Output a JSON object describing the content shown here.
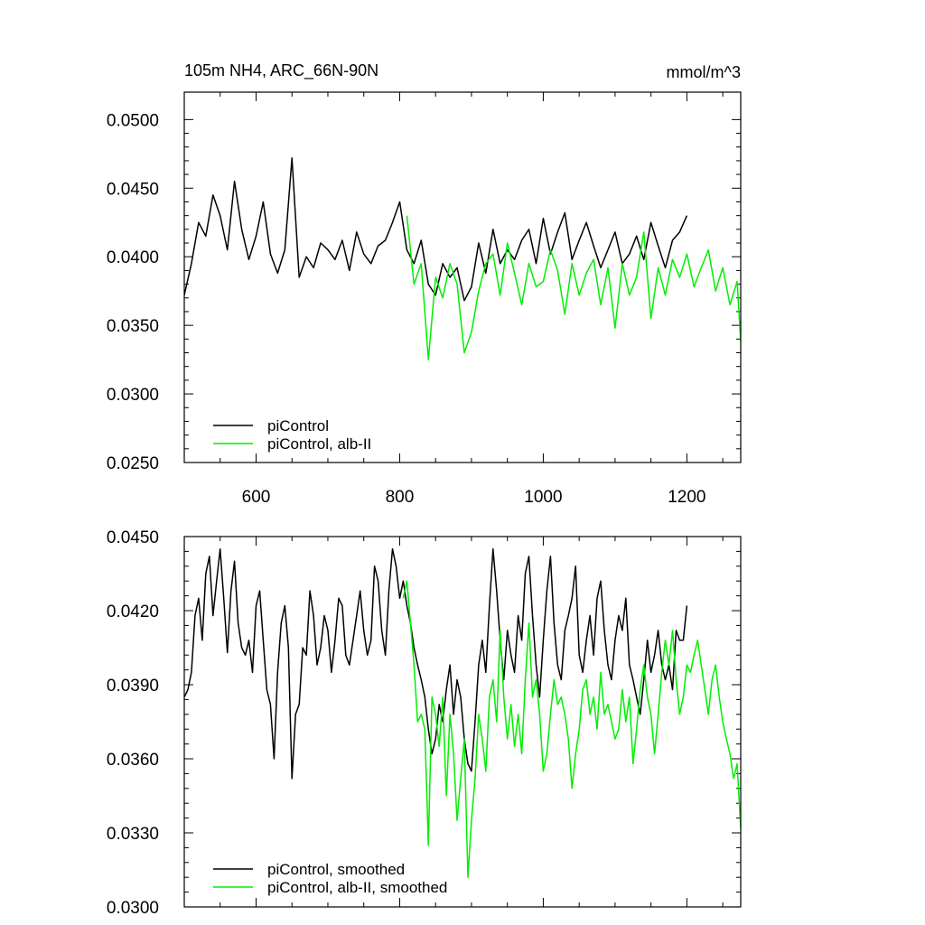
{
  "chart_data": [
    {
      "type": "line",
      "title": "105m NH4, ARC_66N-90N",
      "units": "mmol/m^3",
      "xlabel": "",
      "ylabel": "",
      "xlim": [
        500,
        1275
      ],
      "ylim": [
        0.025,
        0.052
      ],
      "xticks": [
        600,
        800,
        1000,
        1200
      ],
      "xtick_labels": [
        "600",
        "800",
        "1000",
        "1200"
      ],
      "yticks": [
        0.025,
        0.03,
        0.035,
        0.04,
        0.045,
        0.05
      ],
      "ytick_labels": [
        "0.0250",
        "0.0300",
        "0.0350",
        "0.0400",
        "0.0450",
        "0.0500"
      ],
      "grid": false,
      "legend_position": "bottom-left",
      "series": [
        {
          "name": "piControl",
          "color": "#000000",
          "x": [
            500,
            510,
            520,
            530,
            540,
            550,
            560,
            570,
            580,
            590,
            600,
            610,
            620,
            630,
            640,
            650,
            660,
            670,
            680,
            690,
            700,
            710,
            720,
            730,
            740,
            750,
            760,
            770,
            780,
            790,
            800,
            810,
            820,
            830,
            840,
            850,
            860,
            870,
            880,
            890,
            900,
            910,
            920,
            930,
            940,
            950,
            960,
            970,
            980,
            990,
            1000,
            1010,
            1020,
            1030,
            1040,
            1050,
            1060,
            1070,
            1080,
            1090,
            1100,
            1110,
            1120,
            1130,
            1140,
            1150,
            1160,
            1170,
            1180,
            1190,
            1200
          ],
          "y": [
            0.0372,
            0.0395,
            0.0425,
            0.0415,
            0.0445,
            0.043,
            0.0405,
            0.0455,
            0.042,
            0.0398,
            0.0415,
            0.044,
            0.0402,
            0.0388,
            0.0405,
            0.0472,
            0.0385,
            0.04,
            0.0392,
            0.041,
            0.0405,
            0.0398,
            0.0412,
            0.039,
            0.0418,
            0.0402,
            0.0395,
            0.0408,
            0.0412,
            0.0425,
            0.044,
            0.0405,
            0.0395,
            0.0412,
            0.038,
            0.0372,
            0.0395,
            0.0385,
            0.0392,
            0.0368,
            0.0378,
            0.041,
            0.0388,
            0.042,
            0.0395,
            0.0405,
            0.0398,
            0.0412,
            0.042,
            0.0395,
            0.0428,
            0.0402,
            0.0418,
            0.0432,
            0.0398,
            0.0412,
            0.0425,
            0.0408,
            0.0392,
            0.0405,
            0.0418,
            0.0395,
            0.0402,
            0.0415,
            0.0398,
            0.0425,
            0.0408,
            0.0392,
            0.0412,
            0.0418,
            0.043
          ]
        },
        {
          "name": "piControl, alb-II",
          "color": "#00ee00",
          "x": [
            810,
            820,
            830,
            840,
            850,
            860,
            870,
            880,
            890,
            900,
            910,
            920,
            930,
            940,
            950,
            960,
            970,
            980,
            990,
            1000,
            1010,
            1020,
            1030,
            1040,
            1050,
            1060,
            1070,
            1080,
            1090,
            1100,
            1110,
            1120,
            1130,
            1140,
            1150,
            1160,
            1170,
            1180,
            1190,
            1200,
            1210,
            1220,
            1230,
            1240,
            1250,
            1260,
            1270,
            1275
          ],
          "y": [
            0.043,
            0.038,
            0.0395,
            0.0325,
            0.0385,
            0.037,
            0.0395,
            0.038,
            0.033,
            0.0345,
            0.0375,
            0.0395,
            0.0402,
            0.0372,
            0.041,
            0.0388,
            0.0365,
            0.0395,
            0.0378,
            0.0382,
            0.0405,
            0.039,
            0.0358,
            0.0395,
            0.0372,
            0.0388,
            0.0398,
            0.0365,
            0.0392,
            0.0348,
            0.0395,
            0.0372,
            0.0385,
            0.0418,
            0.0355,
            0.0392,
            0.0372,
            0.0398,
            0.0385,
            0.0402,
            0.0378,
            0.0392,
            0.0405,
            0.0375,
            0.0392,
            0.0365,
            0.0382,
            0.0338
          ]
        }
      ]
    },
    {
      "type": "line",
      "title": "",
      "xlabel": "",
      "ylabel": "",
      "xlim": [
        500,
        1275
      ],
      "ylim": [
        0.03,
        0.045
      ],
      "xticks": [
        600,
        800,
        1000,
        1200
      ],
      "yticks": [
        0.03,
        0.033,
        0.036,
        0.039,
        0.042,
        0.045
      ],
      "ytick_labels": [
        "0.0300",
        "0.0330",
        "0.0360",
        "0.0390",
        "0.0420",
        "0.0450"
      ],
      "grid": false,
      "legend_position": "bottom-left",
      "series": [
        {
          "name": "piControl, smoothed",
          "color": "#000000",
          "x": [
            500,
            505,
            510,
            515,
            520,
            525,
            530,
            535,
            540,
            545,
            550,
            555,
            560,
            565,
            570,
            575,
            580,
            585,
            590,
            595,
            600,
            605,
            610,
            615,
            620,
            625,
            630,
            635,
            640,
            645,
            650,
            655,
            660,
            665,
            670,
            675,
            680,
            685,
            690,
            695,
            700,
            705,
            710,
            715,
            720,
            725,
            730,
            735,
            740,
            745,
            750,
            755,
            760,
            765,
            770,
            775,
            780,
            785,
            790,
            795,
            800,
            805,
            810,
            815,
            820,
            825,
            830,
            835,
            840,
            845,
            850,
            855,
            860,
            865,
            870,
            875,
            880,
            885,
            890,
            895,
            900,
            905,
            910,
            915,
            920,
            925,
            930,
            935,
            940,
            945,
            950,
            955,
            960,
            965,
            970,
            975,
            980,
            985,
            990,
            995,
            1000,
            1005,
            1010,
            1015,
            1020,
            1025,
            1030,
            1035,
            1040,
            1045,
            1050,
            1055,
            1060,
            1065,
            1070,
            1075,
            1080,
            1085,
            1090,
            1095,
            1100,
            1105,
            1110,
            1115,
            1120,
            1125,
            1130,
            1135,
            1140,
            1145,
            1150,
            1155,
            1160,
            1165,
            1170,
            1175,
            1180,
            1185,
            1190,
            1195,
            1200
          ],
          "y": [
            0.0385,
            0.0388,
            0.0395,
            0.0418,
            0.0425,
            0.0408,
            0.0435,
            0.0442,
            0.0418,
            0.0432,
            0.0445,
            0.0425,
            0.0403,
            0.0428,
            0.044,
            0.0415,
            0.0405,
            0.0402,
            0.0408,
            0.0395,
            0.0422,
            0.0428,
            0.0408,
            0.0388,
            0.0382,
            0.036,
            0.0395,
            0.0415,
            0.0422,
            0.0405,
            0.0352,
            0.0378,
            0.0382,
            0.0405,
            0.0402,
            0.0428,
            0.0418,
            0.0398,
            0.0405,
            0.0418,
            0.0412,
            0.0395,
            0.0408,
            0.0425,
            0.0422,
            0.0402,
            0.0398,
            0.0408,
            0.0418,
            0.0428,
            0.0412,
            0.0402,
            0.0408,
            0.0438,
            0.0432,
            0.0412,
            0.0402,
            0.0428,
            0.0445,
            0.0438,
            0.0425,
            0.0432,
            0.0422,
            0.0415,
            0.0405,
            0.0398,
            0.0392,
            0.0385,
            0.0372,
            0.0362,
            0.0368,
            0.0382,
            0.0375,
            0.0388,
            0.0398,
            0.0378,
            0.0392,
            0.0385,
            0.0368,
            0.0358,
            0.0355,
            0.0375,
            0.0398,
            0.0408,
            0.0395,
            0.0422,
            0.0445,
            0.0428,
            0.0408,
            0.0392,
            0.0412,
            0.0402,
            0.0395,
            0.0418,
            0.0408,
            0.0435,
            0.0442,
            0.0418,
            0.0398,
            0.0385,
            0.0408,
            0.0428,
            0.0442,
            0.0415,
            0.0398,
            0.0392,
            0.0412,
            0.0418,
            0.0425,
            0.0438,
            0.0402,
            0.0395,
            0.0408,
            0.0418,
            0.0402,
            0.0425,
            0.0432,
            0.0412,
            0.0398,
            0.0392,
            0.0408,
            0.0418,
            0.0412,
            0.0425,
            0.0398,
            0.0392,
            0.0385,
            0.0378,
            0.0392,
            0.0408,
            0.0395,
            0.0402,
            0.0412,
            0.0398,
            0.0392,
            0.0398,
            0.0388,
            0.0412,
            0.0408,
            0.0408,
            0.0422
          ]
        },
        {
          "name": "piControl, alb-II, smoothed",
          "color": "#00ee00",
          "x": [
            805,
            810,
            815,
            820,
            825,
            830,
            835,
            840,
            845,
            850,
            855,
            860,
            865,
            870,
            875,
            880,
            885,
            890,
            895,
            900,
            905,
            910,
            915,
            920,
            925,
            930,
            935,
            940,
            945,
            950,
            955,
            960,
            965,
            970,
            975,
            980,
            985,
            990,
            995,
            1000,
            1005,
            1010,
            1015,
            1020,
            1025,
            1030,
            1035,
            1040,
            1045,
            1050,
            1055,
            1060,
            1065,
            1070,
            1075,
            1080,
            1085,
            1090,
            1095,
            1100,
            1105,
            1110,
            1115,
            1120,
            1125,
            1130,
            1135,
            1140,
            1145,
            1150,
            1155,
            1160,
            1165,
            1170,
            1175,
            1180,
            1185,
            1190,
            1195,
            1200,
            1205,
            1210,
            1215,
            1220,
            1225,
            1230,
            1235,
            1240,
            1245,
            1250,
            1255,
            1260,
            1265,
            1270,
            1275
          ],
          "y": [
            0.0425,
            0.0432,
            0.0415,
            0.0398,
            0.0375,
            0.0378,
            0.0372,
            0.0325,
            0.0385,
            0.0378,
            0.0365,
            0.0385,
            0.0345,
            0.0378,
            0.0362,
            0.0335,
            0.0352,
            0.0368,
            0.0312,
            0.0335,
            0.0352,
            0.0378,
            0.0368,
            0.0355,
            0.0385,
            0.0392,
            0.0375,
            0.0412,
            0.0385,
            0.0368,
            0.0382,
            0.0365,
            0.0378,
            0.0362,
            0.0392,
            0.0415,
            0.0385,
            0.0392,
            0.0378,
            0.0355,
            0.0362,
            0.0378,
            0.0392,
            0.0382,
            0.0385,
            0.0378,
            0.0368,
            0.0348,
            0.0362,
            0.0372,
            0.0388,
            0.0392,
            0.0378,
            0.0385,
            0.0372,
            0.0395,
            0.0378,
            0.0382,
            0.0375,
            0.0368,
            0.0372,
            0.0388,
            0.0375,
            0.0385,
            0.0358,
            0.0372,
            0.0388,
            0.0398,
            0.0385,
            0.0378,
            0.0362,
            0.0378,
            0.0395,
            0.0408,
            0.0398,
            0.0412,
            0.0392,
            0.0378,
            0.0385,
            0.0398,
            0.0395,
            0.0402,
            0.0408,
            0.0398,
            0.0388,
            0.0378,
            0.0392,
            0.0398,
            0.0385,
            0.0375,
            0.0368,
            0.0362,
            0.0352,
            0.0358,
            0.0332
          ]
        }
      ]
    }
  ]
}
